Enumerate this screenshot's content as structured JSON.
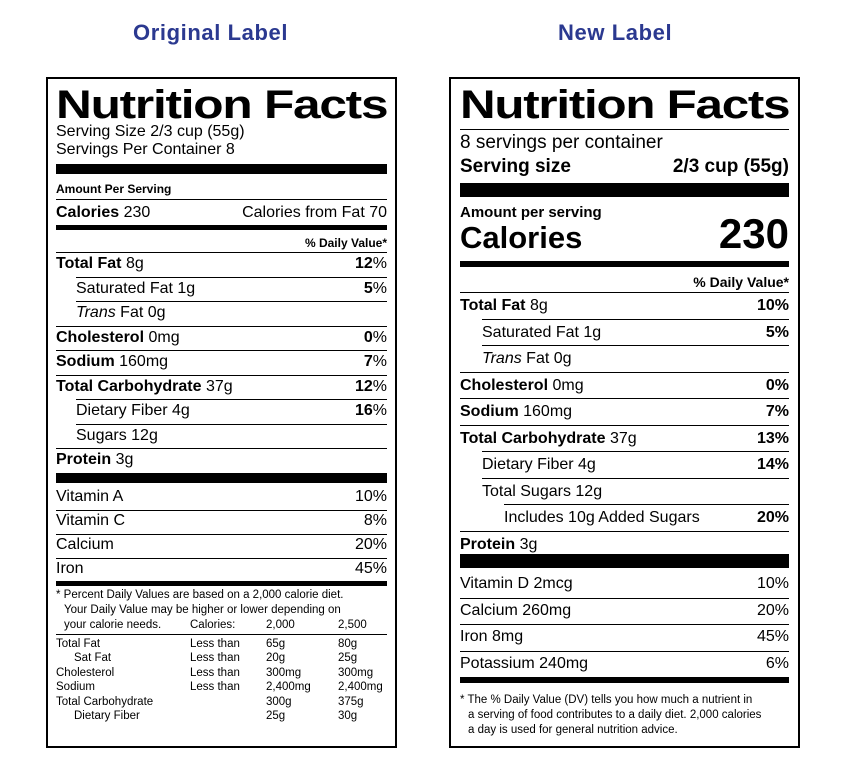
{
  "headings": {
    "original": "Original Label",
    "new": "New Label"
  },
  "original": {
    "title": "Nutrition Facts",
    "serving_size": "Serving Size 2/3 cup (55g)",
    "servings_per_container": "Servings Per Container 8",
    "amount_per_serving": "Amount Per Serving",
    "calories_label": "Calories",
    "calories_value": "230",
    "calories_from_fat": "Calories from Fat 70",
    "dv_header": "% Daily Value*",
    "nutrients": [
      {
        "name": "Total Fat",
        "amount": "8g",
        "dv": "12",
        "bold": true,
        "indent": false
      },
      {
        "name": "Saturated Fat",
        "amount": "1g",
        "dv": "5",
        "bold": false,
        "indent": true
      },
      {
        "name": "Trans",
        "name2": "Fat",
        "amount": "0g",
        "dv": "",
        "bold": false,
        "indent": true
      },
      {
        "name": "Cholesterol",
        "amount": "0mg",
        "dv": "0",
        "bold": true,
        "indent": false
      },
      {
        "name": "Sodium",
        "amount": "160mg",
        "dv": "7",
        "bold": true,
        "indent": false
      },
      {
        "name": "Total Carbohydrate",
        "amount": "37g",
        "dv": "12",
        "bold": true,
        "indent": false
      },
      {
        "name": "Dietary Fiber",
        "amount": "4g",
        "dv": "16",
        "bold": false,
        "indent": true
      },
      {
        "name": "Sugars",
        "amount": "12g",
        "dv": "",
        "bold": false,
        "indent": true
      },
      {
        "name": "Protein",
        "amount": "3g",
        "dv": "",
        "bold": true,
        "indent": false
      }
    ],
    "percent_sign": "%",
    "vitamins": [
      {
        "name": "Vitamin A",
        "dv": "10%"
      },
      {
        "name": "Vitamin C",
        "dv": "8%"
      },
      {
        "name": "Calcium",
        "dv": "20%"
      },
      {
        "name": "Iron",
        "dv": "45%"
      }
    ],
    "footnote_lines": [
      "* Percent Daily Values are based on a 2,000 calorie diet.",
      "Your Daily Value may be higher or lower depending on",
      "your calorie needs."
    ],
    "calories_col_label": "Calories:",
    "col_2000": "2,000",
    "col_2500": "2,500",
    "reference_table": [
      {
        "name": "Total Fat",
        "cmp": "Less than",
        "c2000": "65g",
        "c2500": "80g",
        "indent": false
      },
      {
        "name": "Sat Fat",
        "cmp": "Less than",
        "c2000": "20g",
        "c2500": "25g",
        "indent": true
      },
      {
        "name": "Cholesterol",
        "cmp": "Less than",
        "c2000": "300mg",
        "c2500": "300mg",
        "indent": false
      },
      {
        "name": "Sodium",
        "cmp": "Less than",
        "c2000": "2,400mg",
        "c2500": "2,400mg",
        "indent": false
      },
      {
        "name": "Total Carbohydrate",
        "cmp": "",
        "c2000": "300g",
        "c2500": "375g",
        "indent": false
      },
      {
        "name": "Dietary Fiber",
        "cmp": "",
        "c2000": "25g",
        "c2500": "30g",
        "indent": true
      }
    ]
  },
  "new": {
    "title": "Nutrition Facts",
    "servings_per_container": "8 servings per container",
    "serving_size_label": "Serving size",
    "serving_size_value": "2/3 cup (55g)",
    "amount_per_serving": "Amount per serving",
    "calories_label": "Calories",
    "calories_value": "230",
    "dv_header": "% Daily Value*",
    "nutrients": [
      {
        "name": "Total Fat",
        "amount": "8g",
        "dv": "10%",
        "bold": true,
        "indent": 0
      },
      {
        "name": "Saturated Fat",
        "amount": "1g",
        "dv": "5%",
        "bold": false,
        "indent": 1
      },
      {
        "name": "Trans",
        "name2": "Fat",
        "amount": "0g",
        "dv": "",
        "bold": false,
        "indent": 1
      },
      {
        "name": "Cholesterol",
        "amount": "0mg",
        "dv": "0%",
        "bold": true,
        "indent": 0
      },
      {
        "name": "Sodium",
        "amount": "160mg",
        "dv": "7%",
        "bold": true,
        "indent": 0
      },
      {
        "name": "Total Carbohydrate",
        "amount": "37g",
        "dv": "13%",
        "bold": true,
        "indent": 0
      },
      {
        "name": "Dietary Fiber",
        "amount": "4g",
        "dv": "14%",
        "bold": false,
        "indent": 1
      },
      {
        "name": "Total Sugars",
        "amount": "12g",
        "dv": "",
        "bold": false,
        "indent": 1
      },
      {
        "name": "Includes 10g Added Sugars",
        "amount": "",
        "dv": "20%",
        "bold": false,
        "indent": 2
      },
      {
        "name": "Protein",
        "amount": "3g",
        "dv": "",
        "bold": true,
        "indent": 0
      }
    ],
    "vitamins": [
      {
        "name": "Vitamin D 2mcg",
        "dv": "10%"
      },
      {
        "name": "Calcium 260mg",
        "dv": "20%"
      },
      {
        "name": "Iron 8mg",
        "dv": "45%"
      },
      {
        "name": "Potassium 240mg",
        "dv": "6%"
      }
    ],
    "footnote_lines": [
      "* The % Daily Value (DV) tells you how much a nutrient in",
      "a serving of food contributes to a daily diet. 2,000 calories",
      "a day is used for general nutrition advice."
    ]
  }
}
